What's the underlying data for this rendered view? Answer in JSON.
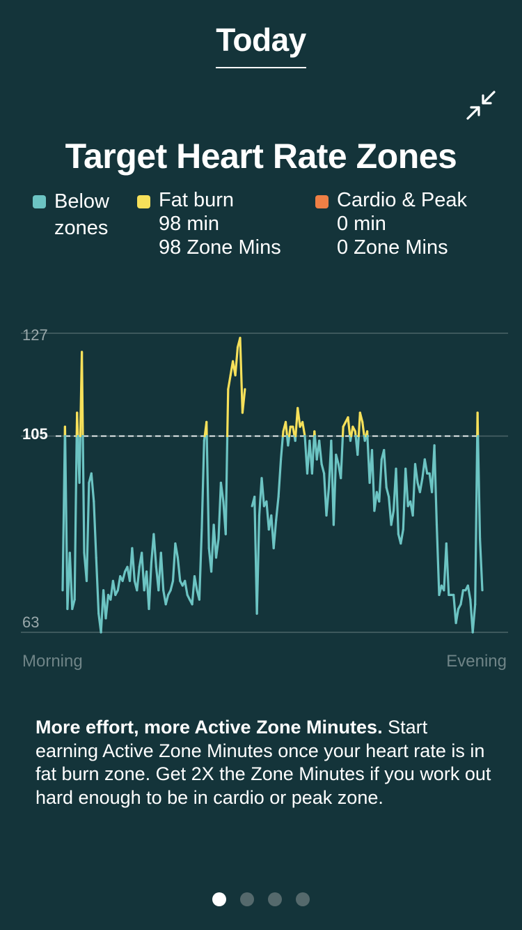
{
  "header": {
    "title": "Today"
  },
  "card": {
    "title": "Target Heart Rate Zones",
    "legend": [
      {
        "name": "Below zones",
        "line1": "Below",
        "line2": "zones",
        "color": "#6cc4c3"
      },
      {
        "name": "Fat burn",
        "line1": "Fat burn",
        "line2": "98 min",
        "line3": "98 Zone Mins",
        "color": "#f6e05a"
      },
      {
        "name": "Cardio & Peak",
        "line1": "Cardio & Peak",
        "line2": "0 min",
        "line3": "0 Zone Mins",
        "color": "#ef7f45"
      }
    ],
    "description_bold": "More effort, more Active Zone Minutes.",
    "description_rest": " Start earning Active Zone Minutes once your heart rate is in fat burn zone. Get 2X the Zone Minutes if you work out hard enough to be in cardio or peak zone."
  },
  "icons": {
    "collapse": "collapse-arrows-icon"
  },
  "chart_data": {
    "type": "line",
    "y_ticks": [
      "127",
      "105",
      "63"
    ],
    "threshold": 105,
    "ylim": [
      63,
      127
    ],
    "x_labels": [
      "Morning",
      "Evening"
    ],
    "colors": {
      "below": "#6cc4c3",
      "fatburn": "#f6e05a",
      "peak": "#ef7f45",
      "grid": "#4b6568"
    },
    "series": [
      {
        "values": [
          72,
          107,
          68,
          80,
          68,
          70,
          110,
          95,
          123,
          80,
          74,
          95,
          97,
          91,
          79,
          67,
          63,
          72,
          66,
          71,
          70,
          74,
          71,
          72,
          75,
          74,
          76,
          77,
          74,
          81,
          74,
          72,
          77,
          80,
          72,
          76,
          68,
          78,
          84,
          77,
          72,
          80,
          72,
          69,
          71,
          72,
          74,
          82,
          79,
          74,
          73,
          74,
          71,
          70,
          69,
          75,
          72,
          70,
          85,
          104,
          108,
          81,
          76,
          86,
          79,
          83,
          95,
          91,
          84,
          115,
          118,
          121,
          118,
          124,
          126,
          110,
          115,
          null,
          null,
          90,
          92,
          67,
          88,
          96,
          90,
          91,
          85,
          88,
          81,
          87,
          92,
          100,
          106,
          108,
          103,
          107,
          107,
          104,
          111,
          107,
          108,
          105,
          97,
          104,
          97,
          106,
          100,
          104,
          99,
          97,
          88,
          94,
          104,
          86,
          101,
          99,
          96,
          107,
          108,
          109,
          104,
          107,
          106,
          101,
          110,
          108,
          104,
          106,
          95,
          102,
          89,
          93,
          91,
          100,
          102,
          94,
          92,
          86,
          89,
          98,
          84,
          82,
          85,
          98,
          90,
          91,
          88,
          99,
          95,
          93,
          96,
          100,
          97,
          97,
          93,
          103,
          86,
          71,
          73,
          72,
          82,
          71,
          71,
          71,
          65,
          68,
          69,
          72,
          72,
          73,
          70,
          63,
          69,
          110,
          83,
          72
        ]
      }
    ]
  },
  "pager": {
    "count": 4,
    "active": 0
  }
}
